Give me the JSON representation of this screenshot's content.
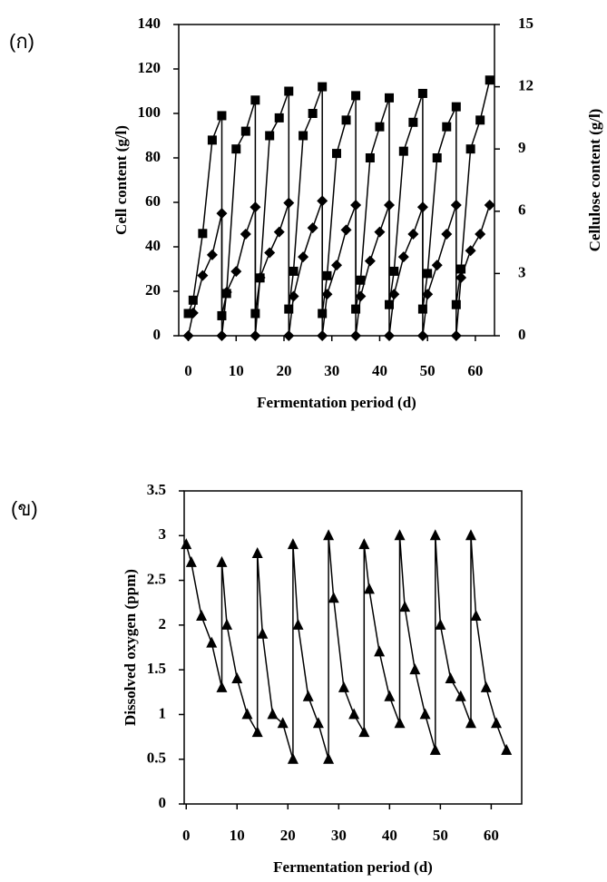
{
  "chart_data": [
    {
      "type": "line",
      "panel_label": "(ก)",
      "ylabel": "Cell content (g/l)",
      "y2label": "Cellulose content (g/l)",
      "xlabel": "Fermentation period (d)",
      "xlim": [
        -2,
        64
      ],
      "xticks": [
        0,
        10,
        20,
        30,
        40,
        50,
        60
      ],
      "ylim": [
        0,
        140
      ],
      "yticks": [
        0,
        20,
        40,
        60,
        80,
        100,
        120,
        140
      ],
      "y2lim": [
        0,
        15
      ],
      "y2ticks": [
        0,
        3,
        6,
        9,
        12,
        15
      ],
      "series": [
        {
          "color": "#000000",
          "marker": "square",
          "x": [
            0,
            1,
            3,
            5,
            7,
            7,
            8,
            10,
            12,
            14,
            14,
            15,
            17,
            19,
            21,
            21,
            22,
            24,
            26,
            28,
            28,
            29,
            31,
            33,
            35,
            35,
            36,
            38,
            40,
            42,
            42,
            43,
            45,
            47,
            49,
            49,
            50,
            52,
            54,
            56,
            56,
            57,
            59,
            61,
            63
          ],
          "values": [
            10,
            16,
            46,
            88,
            99,
            9,
            19,
            84,
            92,
            106,
            10,
            26,
            90,
            98,
            110,
            12,
            29,
            90,
            100,
            112,
            10,
            27,
            82,
            97,
            108,
            12,
            25,
            80,
            94,
            107,
            14,
            29,
            83,
            96,
            109,
            12,
            28,
            80,
            94,
            103,
            14,
            30,
            84,
            97,
            115
          ]
        },
        {
          "color": "#000000",
          "marker": "diamond",
          "axis": "y2",
          "x": [
            0,
            1,
            3,
            5,
            7,
            7,
            8,
            10,
            12,
            14,
            14,
            15,
            17,
            19,
            21,
            21,
            22,
            24,
            26,
            28,
            28,
            29,
            31,
            33,
            35,
            35,
            36,
            38,
            40,
            42,
            42,
            43,
            45,
            47,
            49,
            49,
            50,
            52,
            54,
            56,
            56,
            57,
            59,
            61,
            63
          ],
          "values": [
            0,
            1.1,
            2.9,
            3.9,
            5.9,
            0,
            2.1,
            3.1,
            4.9,
            6.2,
            0,
            2.8,
            4.0,
            5.0,
            6.4,
            0,
            1.9,
            3.8,
            5.2,
            6.5,
            0,
            2.0,
            3.4,
            5.1,
            6.3,
            0,
            1.9,
            3.6,
            5.0,
            6.3,
            0,
            2.0,
            3.8,
            4.9,
            6.2,
            0,
            2.0,
            3.4,
            4.9,
            6.3,
            0,
            2.8,
            4.1,
            4.9,
            6.3
          ]
        }
      ]
    },
    {
      "type": "line",
      "panel_label": "(ข)",
      "ylabel": "Dissolved oxygen (ppm)",
      "xlabel": "Fermentation period (d)",
      "xlim": [
        -0.4,
        66
      ],
      "xticks": [
        0,
        10,
        20,
        30,
        40,
        50,
        60
      ],
      "ylim": [
        0,
        3.5
      ],
      "yticks": [
        0,
        0.5,
        1,
        1.5,
        2,
        2.5,
        3,
        3.5
      ],
      "series": [
        {
          "color": "#000000",
          "marker": "triangle",
          "x": [
            0,
            1,
            3,
            5,
            7,
            7,
            8,
            10,
            12,
            14,
            14,
            15,
            17,
            19,
            21,
            21,
            22,
            24,
            26,
            28,
            28,
            29,
            31,
            33,
            35,
            35,
            36,
            38,
            40,
            42,
            42,
            43,
            45,
            47,
            49,
            49,
            50,
            52,
            54,
            56,
            56,
            57,
            59,
            61,
            63
          ],
          "values": [
            2.9,
            2.7,
            2.1,
            1.8,
            1.3,
            2.7,
            2.0,
            1.4,
            1.0,
            0.8,
            2.8,
            1.9,
            1.0,
            0.9,
            0.5,
            2.9,
            2.0,
            1.2,
            0.9,
            0.5,
            3.0,
            2.3,
            1.3,
            1.0,
            0.8,
            2.9,
            2.4,
            1.7,
            1.2,
            0.9,
            3.0,
            2.2,
            1.5,
            1.0,
            0.6,
            3.0,
            2.0,
            1.4,
            1.2,
            0.9,
            3.0,
            2.1,
            1.3,
            0.9,
            0.6
          ]
        }
      ]
    }
  ]
}
